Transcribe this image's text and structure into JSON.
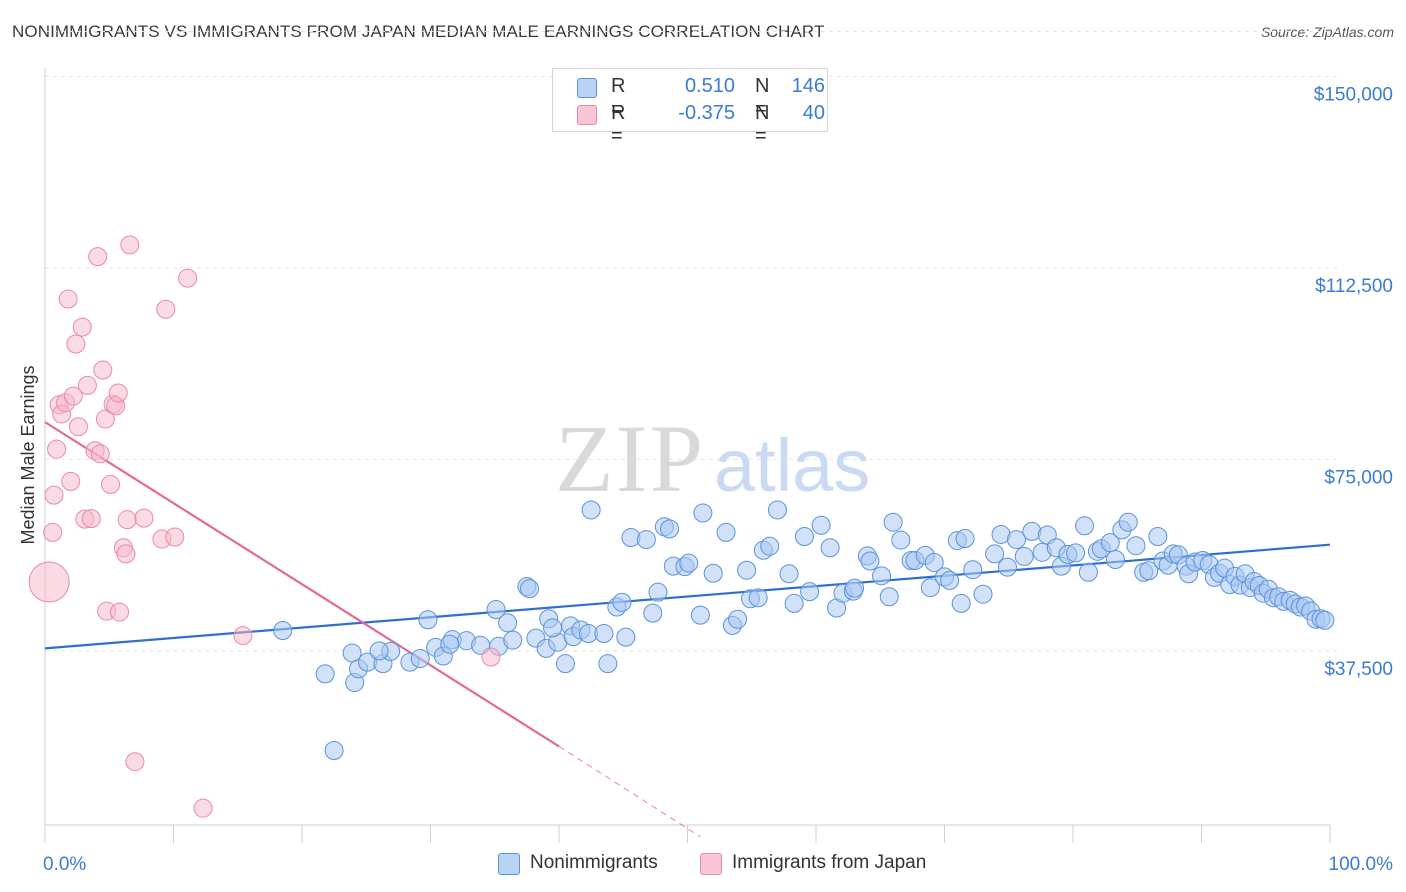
{
  "title": "NONIMMIGRANTS VS IMMIGRANTS FROM JAPAN MEDIAN MALE EARNINGS CORRELATION CHART",
  "source": "Source: ZipAtlas.com",
  "watermark": {
    "zip": "ZIP",
    "atlas": "atlas"
  },
  "colors": {
    "blue_fill": "#a9c8f2",
    "blue_stroke": "#5b93dc",
    "blue_line": "#2f6fce",
    "pink_fill": "#f6b7c9",
    "pink_stroke": "#e98aa6",
    "pink_line": "#e26b93",
    "axis_text": "#3a7bd5",
    "grid": "#e4e4e4"
  },
  "legend": {
    "rows": [
      {
        "r_label": "R =",
        "r_value": "0.510",
        "n_label": "N =",
        "n_value": "146"
      },
      {
        "r_label": "R =",
        "r_value": "-0.375",
        "n_label": "N =",
        "n_value": "40"
      }
    ]
  },
  "bottom_legend": {
    "blue": "Nonimmigrants",
    "pink": "Immigrants from Japan"
  },
  "chart_data": {
    "type": "scatter",
    "title": "NONIMMIGRANTS VS IMMIGRANTS FROM JAPAN MEDIAN MALE EARNINGS CORRELATION CHART",
    "xlabel": "",
    "ylabel": "Median Male Earnings",
    "xlim": [
      0,
      100
    ],
    "ylim": [
      0,
      160000
    ],
    "x_tick_labels": [
      "0.0%",
      "100.0%"
    ],
    "y_ticks": [
      37500,
      75000,
      112500,
      150000
    ],
    "y_tick_labels": [
      "$37,500",
      "$75,000",
      "$112,500",
      "$150,000"
    ],
    "grid": true,
    "series": [
      {
        "name": "Nonimmigrants",
        "trend": [
          [
            0,
            38000
          ],
          [
            100,
            58300
          ]
        ],
        "points": [
          [
            21.8,
            33000
          ],
          [
            24.1,
            31300
          ],
          [
            23.9,
            37100
          ],
          [
            24.4,
            34000
          ],
          [
            25.1,
            35300
          ],
          [
            26.3,
            35000
          ],
          [
            26.9,
            37400
          ],
          [
            28.4,
            35300
          ],
          [
            29.2,
            36000
          ],
          [
            29.8,
            43600
          ],
          [
            30.4,
            38200
          ],
          [
            31.0,
            36500
          ],
          [
            31.7,
            39700
          ],
          [
            32.8,
            39500
          ],
          [
            33.9,
            38600
          ],
          [
            35.1,
            45600
          ],
          [
            35.3,
            38400
          ],
          [
            36.0,
            43000
          ],
          [
            36.4,
            39600
          ],
          [
            37.5,
            50100
          ],
          [
            37.7,
            49700
          ],
          [
            38.2,
            40000
          ],
          [
            39.0,
            38000
          ],
          [
            39.2,
            43800
          ],
          [
            39.9,
            39200
          ],
          [
            40.9,
            42400
          ],
          [
            41.1,
            40300
          ],
          [
            41.7,
            41600
          ],
          [
            42.3,
            40900
          ],
          [
            42.5,
            65100
          ],
          [
            43.5,
            40900
          ],
          [
            43.8,
            35000
          ],
          [
            44.5,
            46100
          ],
          [
            44.9,
            47000
          ],
          [
            45.6,
            59700
          ],
          [
            46.8,
            59300
          ],
          [
            47.3,
            44900
          ],
          [
            47.7,
            49000
          ],
          [
            48.2,
            61800
          ],
          [
            48.6,
            61400
          ],
          [
            48.9,
            54100
          ],
          [
            49.8,
            54000
          ],
          [
            50.1,
            54700
          ],
          [
            51.0,
            44500
          ],
          [
            51.2,
            64500
          ],
          [
            52.0,
            52700
          ],
          [
            53.0,
            60700
          ],
          [
            53.5,
            42500
          ],
          [
            53.9,
            43700
          ],
          [
            54.6,
            53300
          ],
          [
            54.9,
            47700
          ],
          [
            55.5,
            47900
          ],
          [
            55.9,
            57200
          ],
          [
            56.4,
            58000
          ],
          [
            57.0,
            65100
          ],
          [
            57.9,
            52600
          ],
          [
            58.3,
            46800
          ],
          [
            59.1,
            59900
          ],
          [
            59.5,
            49100
          ],
          [
            60.4,
            62100
          ],
          [
            61.1,
            57700
          ],
          [
            61.6,
            45900
          ],
          [
            62.1,
            48800
          ],
          [
            62.9,
            49200
          ],
          [
            63.0,
            49800
          ],
          [
            64.0,
            56100
          ],
          [
            64.2,
            55100
          ],
          [
            65.1,
            52200
          ],
          [
            65.7,
            48100
          ],
          [
            66.0,
            62700
          ],
          [
            66.6,
            59200
          ],
          [
            67.4,
            55200
          ],
          [
            67.7,
            55200
          ],
          [
            68.5,
            56200
          ],
          [
            68.9,
            49900
          ],
          [
            69.2,
            54800
          ],
          [
            70.0,
            52000
          ],
          [
            70.4,
            51300
          ],
          [
            71.0,
            59100
          ],
          [
            71.3,
            46800
          ],
          [
            71.6,
            59500
          ],
          [
            72.2,
            53400
          ],
          [
            73.0,
            48600
          ],
          [
            73.9,
            56500
          ],
          [
            74.4,
            60300
          ],
          [
            74.9,
            53900
          ],
          [
            75.6,
            59300
          ],
          [
            76.2,
            56000
          ],
          [
            76.8,
            60900
          ],
          [
            77.6,
            56800
          ],
          [
            78.0,
            60200
          ],
          [
            78.7,
            57700
          ],
          [
            79.1,
            54100
          ],
          [
            79.6,
            56400
          ],
          [
            80.2,
            56700
          ],
          [
            80.9,
            62000
          ],
          [
            81.2,
            52900
          ],
          [
            81.9,
            57000
          ],
          [
            82.2,
            57500
          ],
          [
            82.9,
            58700
          ],
          [
            83.3,
            55400
          ],
          [
            83.8,
            61200
          ],
          [
            84.3,
            62700
          ],
          [
            84.9,
            58100
          ],
          [
            85.5,
            52900
          ],
          [
            85.9,
            53200
          ],
          [
            86.6,
            59900
          ],
          [
            87.0,
            55100
          ],
          [
            87.4,
            54300
          ],
          [
            87.8,
            56500
          ],
          [
            88.2,
            56300
          ],
          [
            88.8,
            54100
          ],
          [
            89.0,
            52600
          ],
          [
            89.5,
            54900
          ],
          [
            90.1,
            55200
          ],
          [
            90.6,
            54400
          ],
          [
            91.0,
            51900
          ],
          [
            91.4,
            52700
          ],
          [
            91.8,
            53700
          ],
          [
            92.2,
            50500
          ],
          [
            92.6,
            52100
          ],
          [
            93.0,
            50400
          ],
          [
            93.4,
            52600
          ],
          [
            93.8,
            49900
          ],
          [
            94.1,
            51100
          ],
          [
            94.5,
            50300
          ],
          [
            94.8,
            48800
          ],
          [
            95.2,
            49600
          ],
          [
            95.6,
            47900
          ],
          [
            96.0,
            48100
          ],
          [
            96.4,
            47200
          ],
          [
            96.9,
            47400
          ],
          [
            97.3,
            46700
          ],
          [
            97.7,
            46100
          ],
          [
            98.1,
            46300
          ],
          [
            98.5,
            45300
          ],
          [
            98.9,
            43700
          ],
          [
            99.3,
            43800
          ],
          [
            99.6,
            43500
          ],
          [
            26.0,
            37500
          ],
          [
            31.5,
            38800
          ],
          [
            40.5,
            35000
          ],
          [
            45.2,
            40200
          ],
          [
            18.5,
            41500
          ],
          [
            22.5,
            18000
          ],
          [
            39.5,
            42000
          ]
        ]
      },
      {
        "name": "Immigrants from Japan",
        "trend": [
          [
            0,
            82300
          ],
          [
            40,
            18800
          ]
        ],
        "trend_dashed_to": [
          [
            40,
            18800
          ],
          [
            51,
            1100
          ]
        ],
        "points": [
          [
            0.4,
            51000
          ],
          [
            0.6,
            60700
          ],
          [
            0.7,
            68000
          ],
          [
            0.9,
            77000
          ],
          [
            1.1,
            85700
          ],
          [
            1.3,
            83900
          ],
          [
            1.6,
            86100
          ],
          [
            1.8,
            106400
          ],
          [
            2.0,
            70700
          ],
          [
            2.2,
            87400
          ],
          [
            2.4,
            97600
          ],
          [
            2.6,
            81400
          ],
          [
            2.9,
            100900
          ],
          [
            3.1,
            63300
          ],
          [
            3.3,
            89500
          ],
          [
            3.6,
            63400
          ],
          [
            3.9,
            76700
          ],
          [
            4.1,
            114700
          ],
          [
            4.3,
            76100
          ],
          [
            4.5,
            92500
          ],
          [
            4.7,
            82900
          ],
          [
            4.8,
            45300
          ],
          [
            5.1,
            70100
          ],
          [
            5.3,
            85800
          ],
          [
            5.5,
            85500
          ],
          [
            5.7,
            88000
          ],
          [
            5.8,
            45100
          ],
          [
            6.1,
            57700
          ],
          [
            6.3,
            56500
          ],
          [
            6.4,
            63200
          ],
          [
            6.6,
            117000
          ],
          [
            7.0,
            15800
          ],
          [
            7.7,
            63500
          ],
          [
            9.1,
            59400
          ],
          [
            9.4,
            104400
          ],
          [
            10.1,
            59800
          ],
          [
            11.1,
            110500
          ],
          [
            12.3,
            6700
          ],
          [
            15.4,
            40500
          ],
          [
            34.7,
            36300
          ]
        ]
      }
    ]
  }
}
